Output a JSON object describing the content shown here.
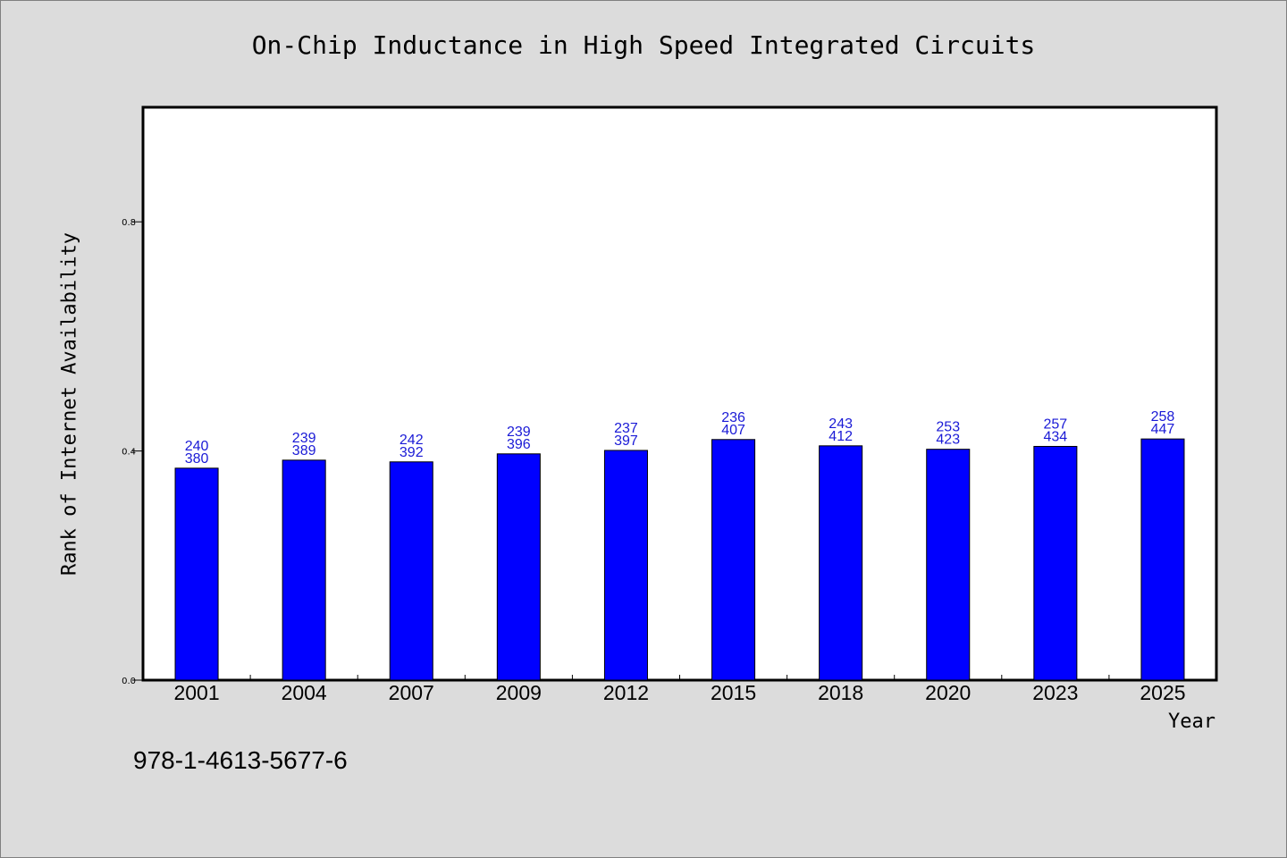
{
  "chart_data": {
    "type": "bar",
    "title": "On-Chip Inductance in High Speed Integrated Circuits",
    "xlabel": "Year",
    "ylabel": "Rank of Internet Availability",
    "categories": [
      "2001",
      "2004",
      "2007",
      "2009",
      "2012",
      "2015",
      "2018",
      "2020",
      "2023",
      "2025"
    ],
    "values": [
      0.37,
      0.384,
      0.381,
      0.395,
      0.401,
      0.42,
      0.409,
      0.403,
      0.408,
      0.421
    ],
    "bar_labels_top": [
      "240",
      "239",
      "242",
      "239",
      "237",
      "236",
      "243",
      "253",
      "257",
      "258"
    ],
    "bar_labels_bottom": [
      "380",
      "389",
      "392",
      "396",
      "397",
      "407",
      "412",
      "423",
      "434",
      "447"
    ],
    "ylim": [
      0,
      1.0
    ],
    "yticks": [
      "0.0",
      "0.4",
      "0.8"
    ],
    "ytick_values": [
      0,
      0.4,
      0.8
    ],
    "bar_color": "#0000ff",
    "label_color": "#1a1ad6",
    "background": "#dcdcdc",
    "plot_background": "#ffffff",
    "grid": false,
    "legend": "none"
  },
  "footer": {
    "identifier": "978-1-4613-5677-6"
  }
}
